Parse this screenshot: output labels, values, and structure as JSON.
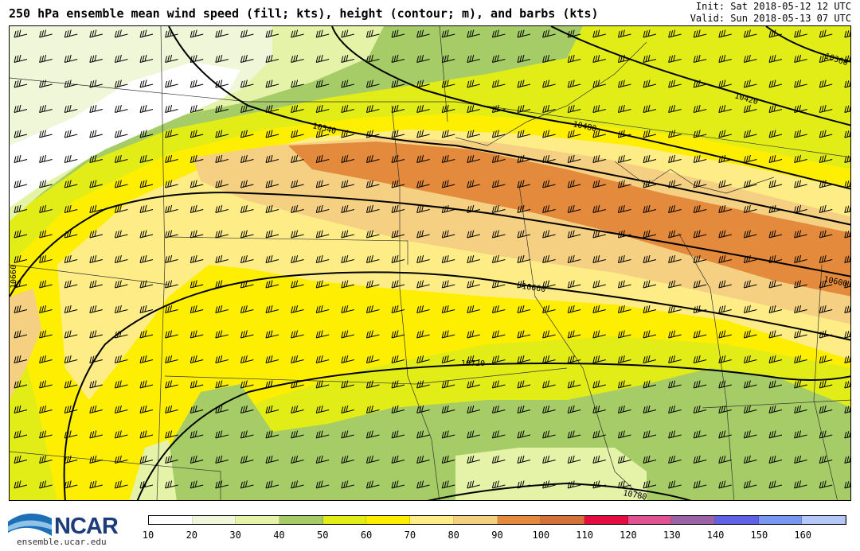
{
  "header": {
    "title": "250 hPa ensemble mean wind speed (fill; kts), height (contour; m), and barbs (kts)",
    "init": "Init: Sat 2018-05-12 12 UTC",
    "valid": "Valid: Sun 2018-05-13 07 UTC"
  },
  "logo": {
    "text": "NCAR",
    "url": "ensemble.ucar.edu"
  },
  "colorbar": {
    "ticks": [
      "10",
      "20",
      "30",
      "40",
      "50",
      "60",
      "70",
      "80",
      "90",
      "100",
      "110",
      "120",
      "130",
      "140",
      "150",
      "160"
    ],
    "colors": [
      "#ffffff",
      "#f0f7d8",
      "#e4f3a7",
      "#a5cc67",
      "#e2ec17",
      "#fdee02",
      "#feed87",
      "#f6d082",
      "#e38a3c",
      "#d4703a",
      "#e50d3f",
      "#e05292",
      "#9a63a5",
      "#5d62e6",
      "#7897f0",
      "#b4c8f7"
    ]
  },
  "contours": {
    "labels": [
      "10360",
      "10420",
      "10480",
      "10540",
      "10600",
      "10660",
      "10720",
      "10780",
      "10660"
    ]
  }
}
